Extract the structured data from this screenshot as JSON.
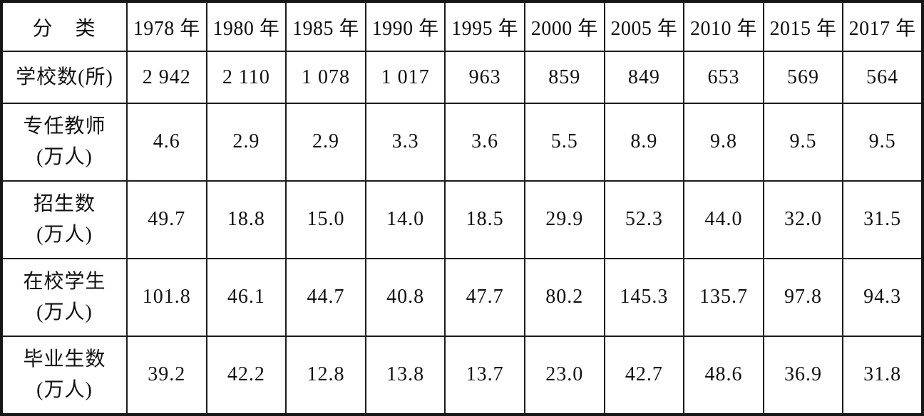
{
  "colors": {
    "border": "#1c1c1c",
    "outer_border": "#161616",
    "text": "#101010",
    "background": "#ffffff"
  },
  "table": {
    "category_header": "分　类",
    "year_headers": [
      "1978 年",
      "1980 年",
      "1985 年",
      "1990 年",
      "1995 年",
      "2000 年",
      "2005 年",
      "2010 年",
      "2015 年",
      "2017 年"
    ],
    "rows": [
      {
        "label_lines": [
          "学校数(所)"
        ],
        "values": [
          "2 942",
          "2 110",
          "1 078",
          "1 017",
          "963",
          "859",
          "849",
          "653",
          "569",
          "564"
        ]
      },
      {
        "label_lines": [
          "专任教师",
          "(万人)"
        ],
        "values": [
          "4.6",
          "2.9",
          "2.9",
          "3.3",
          "3.6",
          "5.5",
          "8.9",
          "9.8",
          "9.5",
          "9.5"
        ]
      },
      {
        "label_lines": [
          "招生数",
          "(万人)"
        ],
        "values": [
          "49.7",
          "18.8",
          "15.0",
          "14.0",
          "18.5",
          "29.9",
          "52.3",
          "44.0",
          "32.0",
          "31.5"
        ]
      },
      {
        "label_lines": [
          "在校学生",
          "(万人)"
        ],
        "values": [
          "101.8",
          "46.1",
          "44.7",
          "40.8",
          "47.7",
          "80.2",
          "145.3",
          "135.7",
          "97.8",
          "94.3"
        ]
      },
      {
        "label_lines": [
          "毕业生数",
          "(万人)"
        ],
        "values": [
          "39.2",
          "42.2",
          "12.8",
          "13.8",
          "13.7",
          "23.0",
          "42.7",
          "48.6",
          "36.9",
          "31.8"
        ]
      }
    ]
  },
  "chart_data": {
    "type": "table",
    "categories": [
      "1978 年",
      "1980 年",
      "1985 年",
      "1990 年",
      "1995 年",
      "2000 年",
      "2005 年",
      "2010 年",
      "2015 年",
      "2017 年"
    ],
    "row_header": "分 类",
    "series": [
      {
        "name": "学校数(所)",
        "values": [
          2942,
          2110,
          1078,
          1017,
          963,
          859,
          849,
          653,
          569,
          564
        ]
      },
      {
        "name": "专任教师(万人)",
        "values": [
          4.6,
          2.9,
          2.9,
          3.3,
          3.6,
          5.5,
          8.9,
          9.8,
          9.5,
          9.5
        ]
      },
      {
        "name": "招生数(万人)",
        "values": [
          49.7,
          18.8,
          15.0,
          14.0,
          18.5,
          29.9,
          52.3,
          44.0,
          32.0,
          31.5
        ]
      },
      {
        "name": "在校学生(万人)",
        "values": [
          101.8,
          46.1,
          44.7,
          40.8,
          47.7,
          80.2,
          145.3,
          135.7,
          97.8,
          94.3
        ]
      },
      {
        "name": "毕业生数(万人)",
        "values": [
          39.2,
          42.2,
          12.8,
          13.8,
          13.7,
          23.0,
          42.7,
          48.6,
          36.9,
          31.8
        ]
      }
    ]
  }
}
